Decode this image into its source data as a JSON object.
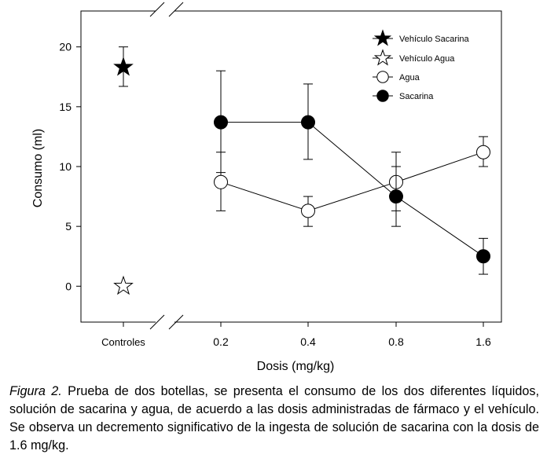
{
  "chart_data": {
    "type": "scatter",
    "subtype": "line-with-error-bars",
    "xlabel": "Dosis (mg/kg)",
    "ylabel": "Consumo (ml)",
    "categories": [
      "Controles",
      "0.2",
      "0.4",
      "0.8",
      "1.6"
    ],
    "ylim": [
      -3,
      23
    ],
    "yticks": [
      0,
      5,
      10,
      15,
      20
    ],
    "grid": false,
    "legend_position": "top-right",
    "series": [
      {
        "name": "Vehículo Sacarina",
        "marker": "star-filled",
        "points": [
          {
            "x": "Controles",
            "y": 18.3,
            "err_low": 16.7,
            "err_high": 20.0
          }
        ]
      },
      {
        "name": "Vehículo Agua",
        "marker": "star-open",
        "points": [
          {
            "x": "Controles",
            "y": 0.0
          }
        ]
      },
      {
        "name": "Agua",
        "marker": "circle-open",
        "points": [
          {
            "x": "0.2",
            "y": 8.7,
            "err_low": 6.3,
            "err_high": 11.2
          },
          {
            "x": "0.4",
            "y": 6.3,
            "err_low": 5.0,
            "err_high": 7.5
          },
          {
            "x": "0.8",
            "y": 8.7,
            "err_low": 6.3,
            "err_high": 11.2
          },
          {
            "x": "1.6",
            "y": 11.2,
            "err_low": 10.0,
            "err_high": 12.5
          }
        ]
      },
      {
        "name": "Sacarina",
        "marker": "circle-filled",
        "points": [
          {
            "x": "0.2",
            "y": 13.7,
            "err_low": 9.5,
            "err_high": 18.0
          },
          {
            "x": "0.4",
            "y": 13.7,
            "err_low": 10.6,
            "err_high": 16.9
          },
          {
            "x": "0.8",
            "y": 7.5,
            "err_low": 5.0,
            "err_high": 10.0
          },
          {
            "x": "1.6",
            "y": 2.5,
            "err_low": 1.0,
            "err_high": 4.0
          }
        ]
      }
    ]
  },
  "caption": {
    "figure_label": "Figura 2.",
    "text": " Prueba de dos botellas, se presenta el consumo de los dos diferentes líquidos, solución de sacarina y agua, de acuerdo a las dosis administradas de fármaco y el vehículo. Se observa un decremento significativo de la ingesta de solución de sacarina con la dosis de 1.6 mg/kg."
  }
}
